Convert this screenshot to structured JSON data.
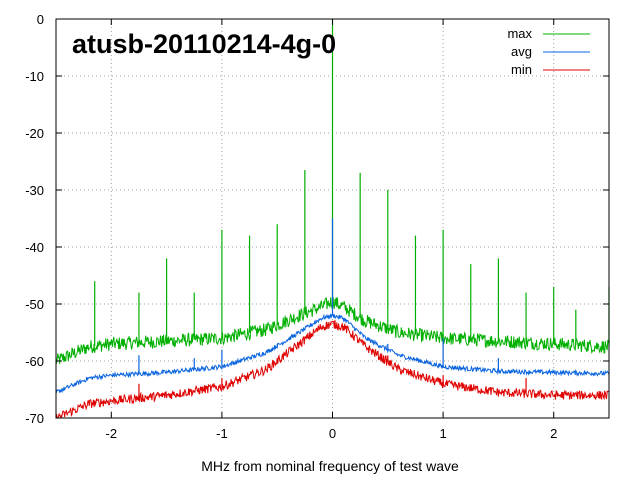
{
  "chart_data": {
    "type": "line",
    "title": "atusb-20110214-4g-0",
    "xlabel": "MHz from nominal frequency of test wave",
    "ylabel": "",
    "xlim": [
      -2.5,
      2.5
    ],
    "ylim": [
      -70,
      0
    ],
    "grid": true,
    "legend_position": "top-right",
    "xticks": [
      {
        "value": -2,
        "label": "-2"
      },
      {
        "value": -1,
        "label": "-1"
      },
      {
        "value": 0,
        "label": "0"
      },
      {
        "value": 1,
        "label": "1"
      },
      {
        "value": 2,
        "label": "2"
      }
    ],
    "yticks": [
      {
        "value": 0,
        "label": "0"
      },
      {
        "value": -10,
        "label": "-10"
      },
      {
        "value": -20,
        "label": "-20"
      },
      {
        "value": -30,
        "label": "-30"
      },
      {
        "value": -40,
        "label": "-40"
      },
      {
        "value": -50,
        "label": "-50"
      },
      {
        "value": -60,
        "label": "-60"
      },
      {
        "value": -70,
        "label": "-70"
      }
    ],
    "series": [
      {
        "name": "max",
        "color": "#00b000",
        "baseline": [
          [
            -2.5,
            -60
          ],
          [
            -2.2,
            -57.5
          ],
          [
            -2,
            -57
          ],
          [
            -1.5,
            -56.5
          ],
          [
            -1,
            -56
          ],
          [
            -0.6,
            -54.5
          ],
          [
            -0.3,
            -52
          ],
          [
            -0.1,
            -50.5
          ],
          [
            0,
            -49.5
          ],
          [
            0.1,
            -50.5
          ],
          [
            0.3,
            -53
          ],
          [
            0.6,
            -55
          ],
          [
            1,
            -56
          ],
          [
            1.5,
            -56.5
          ],
          [
            2,
            -57
          ],
          [
            2.5,
            -57.5
          ]
        ],
        "noise": 1.2,
        "spurs": [
          [
            -2.15,
            -46
          ],
          [
            -1.75,
            -48
          ],
          [
            -1.5,
            -42
          ],
          [
            -1.25,
            -48
          ],
          [
            -1,
            -37
          ],
          [
            -0.75,
            -38
          ],
          [
            -0.5,
            -36
          ],
          [
            -0.25,
            -26.5
          ],
          [
            0,
            0
          ],
          [
            0.25,
            -27
          ],
          [
            0.5,
            -30
          ],
          [
            0.75,
            -38
          ],
          [
            1,
            -37
          ],
          [
            1.25,
            -43
          ],
          [
            1.5,
            -42
          ],
          [
            1.75,
            -48
          ],
          [
            2,
            -47
          ],
          [
            2.2,
            -51
          ],
          [
            2.5,
            -47
          ]
        ]
      },
      {
        "name": "avg",
        "color": "#0a64e0",
        "baseline": [
          [
            -2.5,
            -65.5
          ],
          [
            -2.2,
            -63
          ],
          [
            -2,
            -62.5
          ],
          [
            -1.5,
            -62
          ],
          [
            -1,
            -61
          ],
          [
            -0.6,
            -58.5
          ],
          [
            -0.3,
            -55
          ],
          [
            -0.1,
            -52.5
          ],
          [
            0,
            -52
          ],
          [
            0.1,
            -52.5
          ],
          [
            0.3,
            -56
          ],
          [
            0.6,
            -59
          ],
          [
            1,
            -61
          ],
          [
            1.5,
            -61.8
          ],
          [
            2,
            -62
          ],
          [
            2.5,
            -62.2
          ]
        ],
        "noise": 0.4,
        "spurs": [
          [
            -1.75,
            -59
          ],
          [
            -1.25,
            -59.5
          ],
          [
            -1,
            -58
          ],
          [
            -0.5,
            -57
          ],
          [
            0,
            -35
          ],
          [
            0.5,
            -57
          ],
          [
            1,
            -56
          ],
          [
            1.5,
            -59.5
          ]
        ]
      },
      {
        "name": "min",
        "color": "#e00000",
        "baseline": [
          [
            -2.5,
            -70
          ],
          [
            -2.2,
            -67.5
          ],
          [
            -2,
            -67
          ],
          [
            -1.5,
            -66
          ],
          [
            -1,
            -64.5
          ],
          [
            -0.6,
            -61.5
          ],
          [
            -0.3,
            -57
          ],
          [
            -0.1,
            -54
          ],
          [
            0,
            -53.5
          ],
          [
            0.1,
            -54
          ],
          [
            0.3,
            -57.5
          ],
          [
            0.6,
            -61.5
          ],
          [
            1,
            -64
          ],
          [
            1.5,
            -65.5
          ],
          [
            2,
            -66
          ],
          [
            2.5,
            -66
          ]
        ],
        "noise": 0.8,
        "spurs": [
          [
            -1.75,
            -64
          ],
          [
            -1,
            -63
          ],
          [
            0.5,
            -59
          ],
          [
            1,
            -62.5
          ],
          [
            1.75,
            -63
          ]
        ]
      }
    ]
  }
}
